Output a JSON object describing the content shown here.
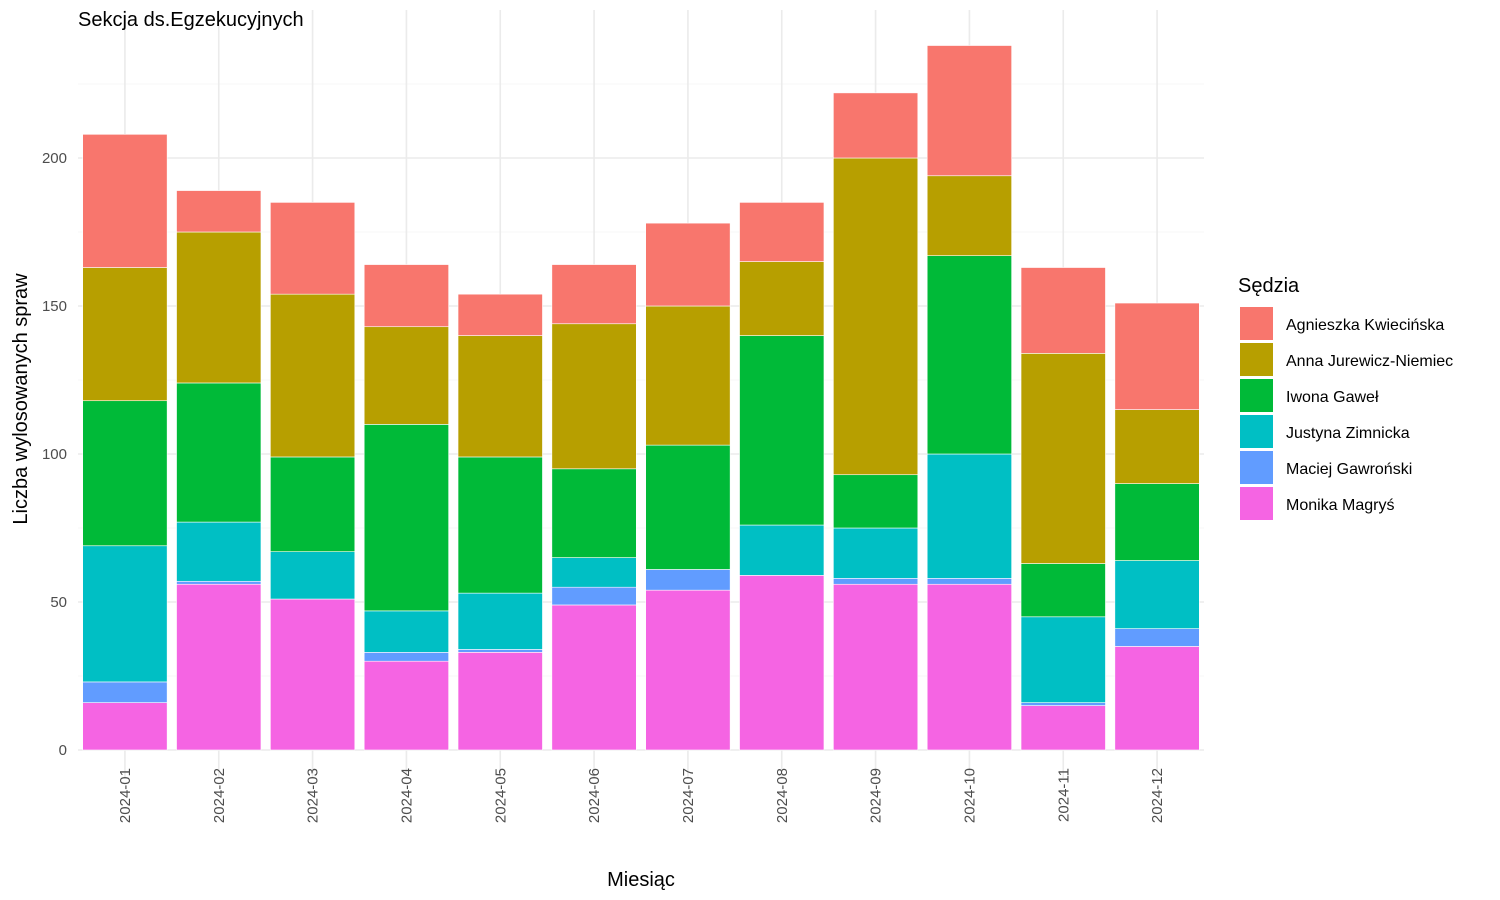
{
  "chart_data": {
    "type": "bar",
    "stacked": true,
    "title": "Sekcja ds.Egzekucyjnych",
    "xlabel": "Miesiąc",
    "ylabel": "Liczba wylosowanych spraw",
    "ylim": [
      0,
      240
    ],
    "yticks": [
      0,
      50,
      100,
      150,
      200
    ],
    "grid": true,
    "legend_title": "Sędzia",
    "legend_position": "right",
    "categories": [
      "2024-01",
      "2024-02",
      "2024-03",
      "2024-04",
      "2024-05",
      "2024-06",
      "2024-07",
      "2024-08",
      "2024-09",
      "2024-10",
      "2024-11",
      "2024-12"
    ],
    "series": [
      {
        "name": "Monika Magryś",
        "color": "#F564E3",
        "values": [
          16,
          56,
          51,
          30,
          33,
          49,
          54,
          59,
          56,
          56,
          15,
          35
        ]
      },
      {
        "name": "Maciej Gawroński",
        "color": "#619CFF",
        "values": [
          7,
          1,
          0,
          3,
          1,
          6,
          7,
          0,
          2,
          2,
          1,
          6
        ]
      },
      {
        "name": "Justyna Zimnicka",
        "color": "#00BFC4",
        "values": [
          46,
          20,
          16,
          14,
          19,
          10,
          0,
          17,
          17,
          42,
          29,
          23
        ]
      },
      {
        "name": "Iwona Gaweł",
        "color": "#00BA38",
        "values": [
          49,
          47,
          32,
          63,
          46,
          30,
          42,
          64,
          18,
          67,
          18,
          26
        ]
      },
      {
        "name": "Anna Jurewicz-Niemiec",
        "color": "#B79F00",
        "values": [
          45,
          51,
          55,
          33,
          41,
          49,
          47,
          25,
          107,
          27,
          71,
          25
        ]
      },
      {
        "name": "Agnieszka Kwiecińska",
        "color": "#F8766D",
        "values": [
          45,
          14,
          31,
          21,
          14,
          20,
          28,
          20,
          22,
          44,
          29,
          36
        ]
      }
    ]
  }
}
